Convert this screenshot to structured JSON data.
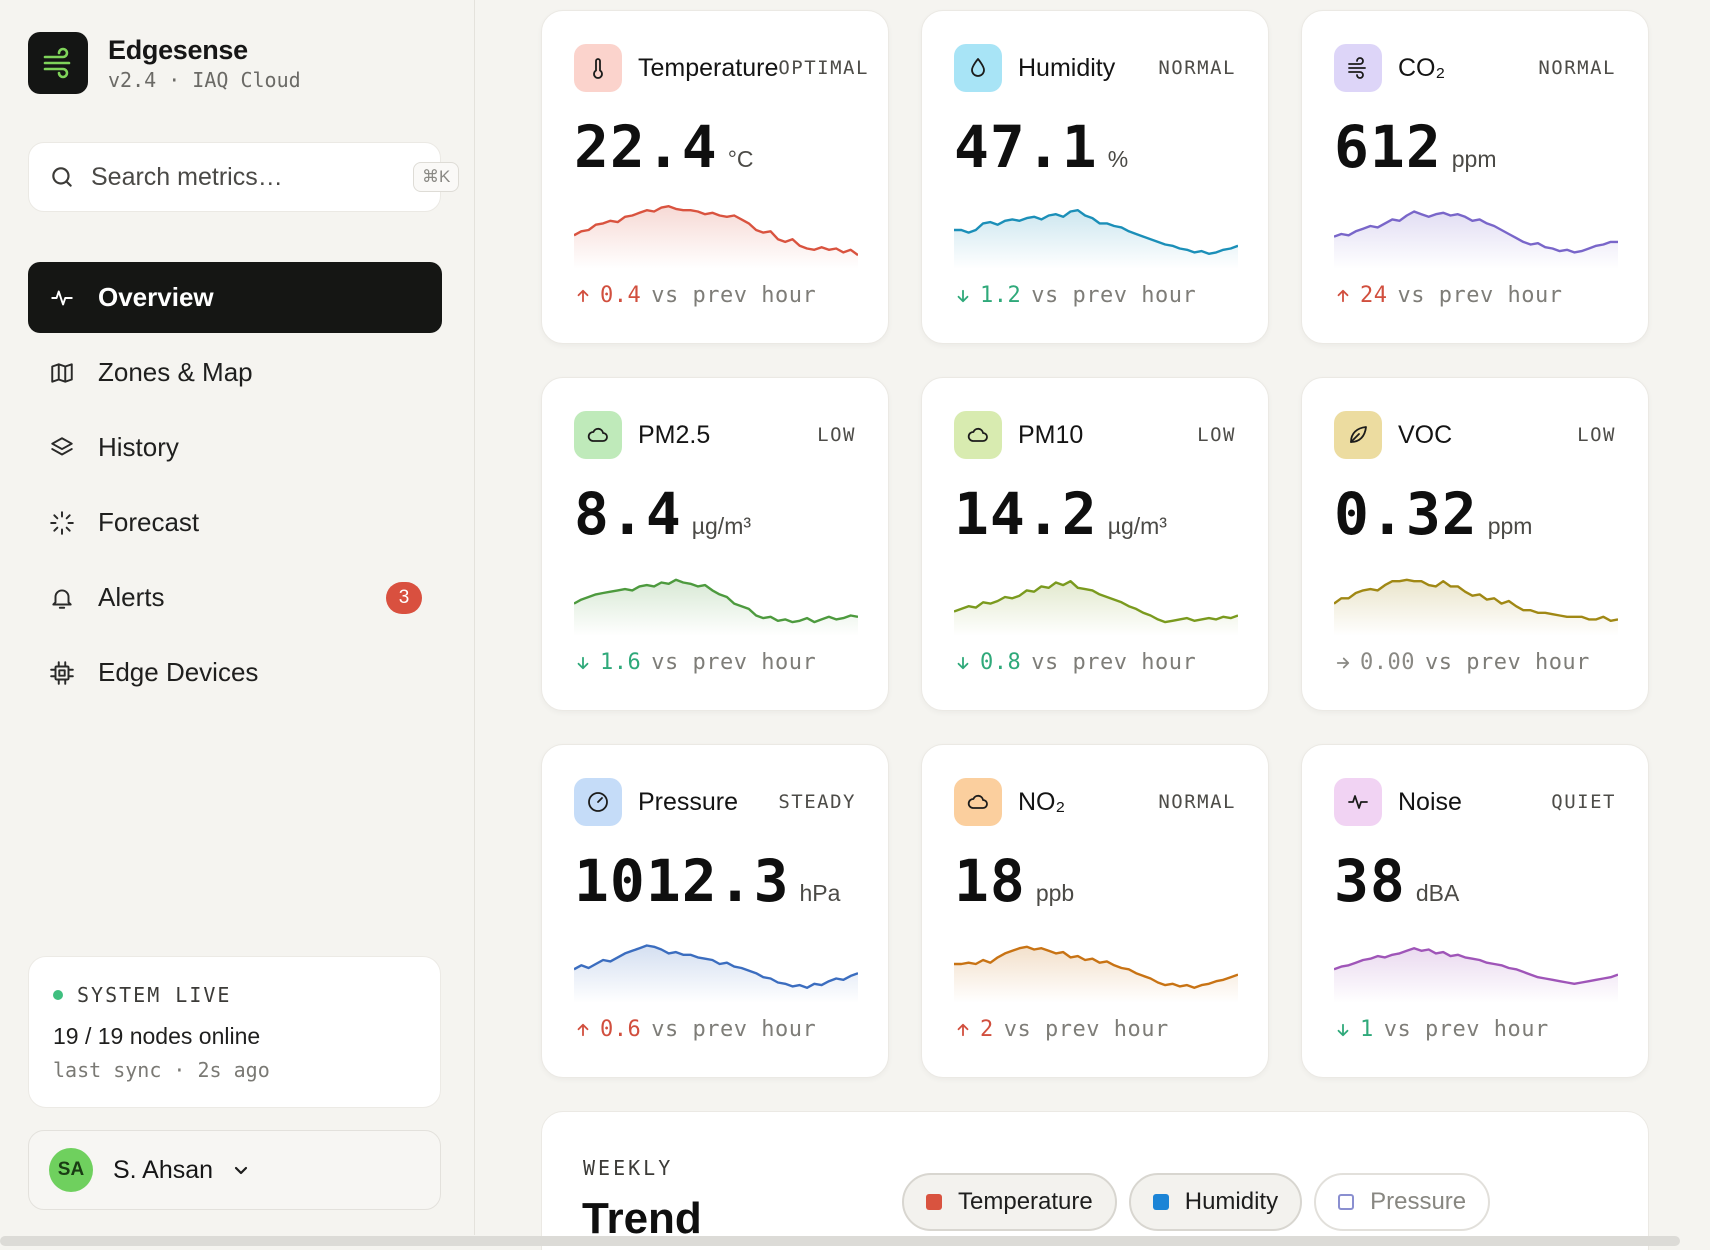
{
  "app": {
    "name": "Edgesense",
    "subtitle": "v2.4 · IAQ Cloud",
    "accent": "#7fd35a"
  },
  "search": {
    "placeholder": "Search metrics…",
    "shortcut": "⌘K"
  },
  "nav": [
    {
      "label": "Overview",
      "icon": "activity-icon",
      "active": true
    },
    {
      "label": "Zones & Map",
      "icon": "map-icon"
    },
    {
      "label": "History",
      "icon": "layers-icon"
    },
    {
      "label": "Forecast",
      "icon": "loader-icon"
    },
    {
      "label": "Alerts",
      "icon": "bell-icon",
      "badge": "3"
    },
    {
      "label": "Edge Devices",
      "icon": "chip-icon"
    }
  ],
  "system": {
    "status": "SYSTEM LIVE",
    "nodes": "19 / 19 nodes online",
    "sync": "last sync · 2s ago"
  },
  "user": {
    "initials": "SA",
    "name": "S. Ahsan"
  },
  "cards": [
    {
      "name": "Temperature",
      "status": "OPTIMAL",
      "value": "22.4",
      "unit": "°C",
      "delta": "0.4",
      "direction": "up",
      "delta_label": "vs prev hour",
      "icon": "thermometer-icon",
      "icon_bg": "#fbd3cc",
      "color": "#d9533f",
      "series": [
        0.42,
        0.48,
        0.5,
        0.58,
        0.6,
        0.64,
        0.62,
        0.7,
        0.72,
        0.76,
        0.8,
        0.78,
        0.84,
        0.86,
        0.82,
        0.8,
        0.8,
        0.78,
        0.74,
        0.76,
        0.72,
        0.7,
        0.72,
        0.66,
        0.6,
        0.5,
        0.46,
        0.48,
        0.36,
        0.32,
        0.36,
        0.26,
        0.22,
        0.2,
        0.24,
        0.2,
        0.22,
        0.16,
        0.2,
        0.12
      ]
    },
    {
      "name": "Humidity",
      "status": "NORMAL",
      "value": "47.1",
      "unit": "%",
      "delta": "1.2",
      "direction": "down",
      "delta_label": "vs prev hour",
      "icon": "droplet-icon",
      "icon_bg": "#a8e4f6",
      "color": "#1b8fb8",
      "series": [
        0.5,
        0.5,
        0.46,
        0.5,
        0.6,
        0.62,
        0.58,
        0.64,
        0.66,
        0.64,
        0.68,
        0.7,
        0.66,
        0.72,
        0.74,
        0.7,
        0.78,
        0.8,
        0.72,
        0.68,
        0.6,
        0.6,
        0.56,
        0.54,
        0.48,
        0.44,
        0.4,
        0.36,
        0.32,
        0.28,
        0.26,
        0.22,
        0.2,
        0.16,
        0.18,
        0.14,
        0.16,
        0.2,
        0.22,
        0.26
      ]
    },
    {
      "name": "CO₂",
      "status": "NORMAL",
      "value": "612",
      "unit": "ppm",
      "delta": "24",
      "direction": "up",
      "delta_label": "vs prev hour",
      "icon": "wind-icon",
      "icon_bg": "#ddd5f8",
      "color": "#7966c9",
      "series": [
        0.4,
        0.44,
        0.42,
        0.48,
        0.52,
        0.56,
        0.54,
        0.6,
        0.66,
        0.64,
        0.72,
        0.78,
        0.74,
        0.7,
        0.74,
        0.76,
        0.72,
        0.74,
        0.7,
        0.64,
        0.66,
        0.6,
        0.56,
        0.5,
        0.44,
        0.38,
        0.32,
        0.28,
        0.3,
        0.24,
        0.22,
        0.18,
        0.2,
        0.16,
        0.18,
        0.22,
        0.26,
        0.28,
        0.32,
        0.32
      ]
    },
    {
      "name": "PM2.5",
      "status": "LOW",
      "value": "8.4",
      "unit": "µg/m³",
      "delta": "1.6",
      "direction": "down",
      "delta_label": "vs prev hour",
      "icon": "cloud-icon",
      "icon_bg": "#bfeaba",
      "color": "#4d9a3e",
      "series": [
        0.4,
        0.46,
        0.5,
        0.54,
        0.56,
        0.58,
        0.6,
        0.62,
        0.6,
        0.66,
        0.68,
        0.66,
        0.72,
        0.7,
        0.76,
        0.72,
        0.7,
        0.66,
        0.68,
        0.6,
        0.54,
        0.5,
        0.4,
        0.36,
        0.32,
        0.22,
        0.18,
        0.2,
        0.14,
        0.16,
        0.12,
        0.14,
        0.18,
        0.12,
        0.16,
        0.2,
        0.16,
        0.18,
        0.22,
        0.2
      ]
    },
    {
      "name": "PM10",
      "status": "LOW",
      "value": "14.2",
      "unit": "µg/m³",
      "delta": "0.8",
      "direction": "down",
      "delta_label": "vs prev hour",
      "icon": "cloud-icon",
      "icon_bg": "#d8ebb0",
      "color": "#7a9a1e",
      "series": [
        0.28,
        0.32,
        0.36,
        0.34,
        0.42,
        0.4,
        0.44,
        0.5,
        0.48,
        0.52,
        0.6,
        0.58,
        0.66,
        0.64,
        0.72,
        0.68,
        0.74,
        0.64,
        0.62,
        0.6,
        0.54,
        0.5,
        0.46,
        0.42,
        0.36,
        0.32,
        0.26,
        0.22,
        0.16,
        0.12,
        0.14,
        0.16,
        0.18,
        0.14,
        0.16,
        0.18,
        0.16,
        0.2,
        0.18,
        0.22
      ]
    },
    {
      "name": "VOC",
      "status": "LOW",
      "value": "0.32",
      "unit": "ppm",
      "delta": "0.00",
      "direction": "flat",
      "delta_label": "vs prev hour",
      "icon": "leaf-icon",
      "icon_bg": "#ecdca0",
      "color": "#a08814",
      "series": [
        0.4,
        0.48,
        0.48,
        0.56,
        0.6,
        0.62,
        0.6,
        0.68,
        0.74,
        0.74,
        0.76,
        0.74,
        0.74,
        0.68,
        0.66,
        0.74,
        0.66,
        0.66,
        0.58,
        0.52,
        0.54,
        0.46,
        0.48,
        0.4,
        0.44,
        0.36,
        0.3,
        0.3,
        0.26,
        0.26,
        0.24,
        0.22,
        0.2,
        0.2,
        0.2,
        0.16,
        0.16,
        0.2,
        0.14,
        0.16
      ]
    },
    {
      "name": "Pressure",
      "status": "STEADY",
      "value": "1012.3",
      "unit": "hPa",
      "delta": "0.6",
      "direction": "up",
      "delta_label": "vs prev hour",
      "icon": "gauge-icon",
      "icon_bg": "#c5dcf8",
      "color": "#3b6dbf",
      "series": [
        0.42,
        0.48,
        0.44,
        0.5,
        0.56,
        0.54,
        0.6,
        0.66,
        0.7,
        0.74,
        0.78,
        0.76,
        0.72,
        0.66,
        0.68,
        0.64,
        0.64,
        0.6,
        0.58,
        0.56,
        0.5,
        0.52,
        0.46,
        0.44,
        0.4,
        0.36,
        0.3,
        0.28,
        0.22,
        0.2,
        0.16,
        0.18,
        0.14,
        0.2,
        0.18,
        0.24,
        0.28,
        0.26,
        0.32,
        0.36
      ]
    },
    {
      "name": "NO₂",
      "status": "NORMAL",
      "value": "18",
      "unit": "ppb",
      "delta": "2",
      "direction": "up",
      "delta_label": "vs prev hour",
      "icon": "cloud-icon",
      "icon_bg": "#fbcf9e",
      "color": "#c87314",
      "series": [
        0.5,
        0.5,
        0.52,
        0.5,
        0.56,
        0.52,
        0.6,
        0.66,
        0.7,
        0.74,
        0.76,
        0.72,
        0.74,
        0.7,
        0.66,
        0.68,
        0.6,
        0.62,
        0.56,
        0.58,
        0.52,
        0.54,
        0.48,
        0.44,
        0.42,
        0.36,
        0.32,
        0.28,
        0.22,
        0.18,
        0.2,
        0.16,
        0.18,
        0.14,
        0.18,
        0.2,
        0.24,
        0.26,
        0.3,
        0.34
      ]
    },
    {
      "name": "Noise",
      "status": "QUIET",
      "value": "38",
      "unit": "dBA",
      "delta": "1",
      "direction": "down",
      "delta_label": "vs prev hour",
      "icon": "activity-icon",
      "icon_bg": "#f1d3f3",
      "color": "#9f55b8",
      "series": [
        0.42,
        0.46,
        0.48,
        0.52,
        0.56,
        0.58,
        0.62,
        0.6,
        0.64,
        0.66,
        0.7,
        0.74,
        0.7,
        0.72,
        0.66,
        0.68,
        0.62,
        0.64,
        0.6,
        0.58,
        0.56,
        0.52,
        0.5,
        0.48,
        0.44,
        0.42,
        0.38,
        0.34,
        0.3,
        0.28,
        0.26,
        0.24,
        0.22,
        0.2,
        0.22,
        0.24,
        0.26,
        0.28,
        0.3,
        0.34
      ]
    }
  ],
  "weekly": {
    "eyebrow": "WEEKLY",
    "title": "Trend",
    "legend": [
      {
        "label": "Temperature",
        "color": "#d9533f",
        "on": true
      },
      {
        "label": "Humidity",
        "color": "#1b84d6",
        "on": true
      },
      {
        "label": "Pressure",
        "color": "#8a8fd0",
        "on": false
      }
    ]
  }
}
